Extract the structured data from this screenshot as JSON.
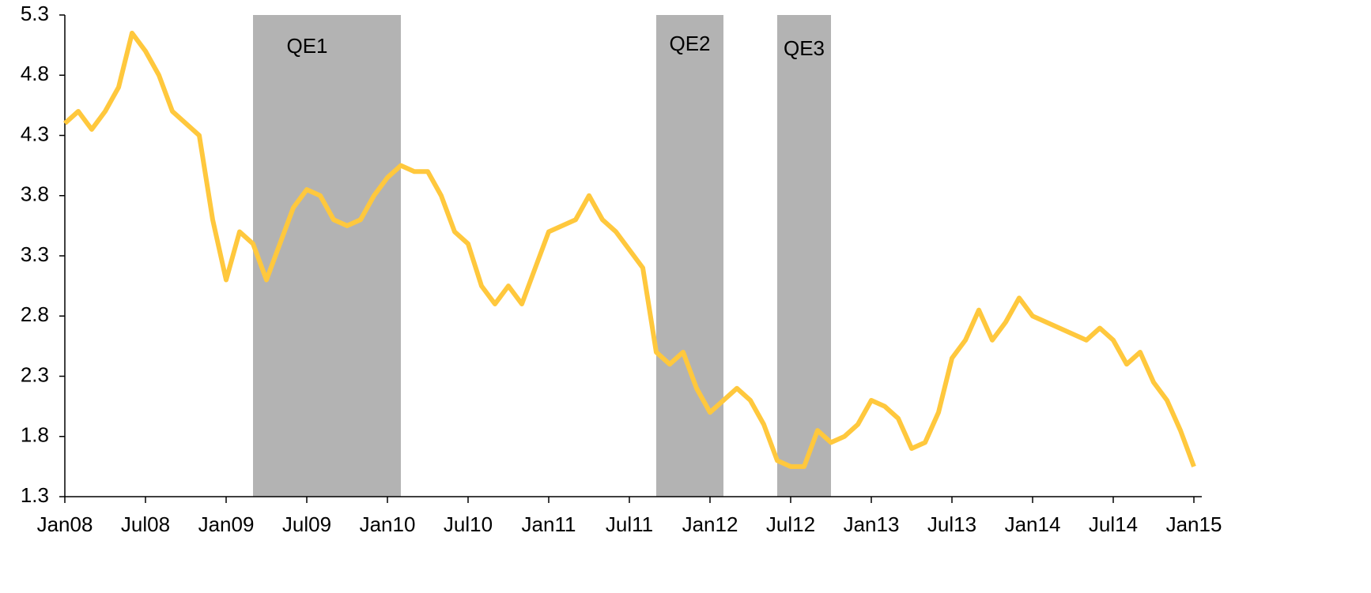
{
  "chart_data": {
    "type": "line",
    "x": [
      "2008-01",
      "2008-02",
      "2008-03",
      "2008-04",
      "2008-05",
      "2008-06",
      "2008-07",
      "2008-08",
      "2008-09",
      "2008-10",
      "2008-11",
      "2008-12",
      "2009-01",
      "2009-02",
      "2009-03",
      "2009-04",
      "2009-05",
      "2009-06",
      "2009-07",
      "2009-08",
      "2009-09",
      "2009-10",
      "2009-11",
      "2009-12",
      "2010-01",
      "2010-02",
      "2010-03",
      "2010-04",
      "2010-05",
      "2010-06",
      "2010-07",
      "2010-08",
      "2010-09",
      "2010-10",
      "2010-11",
      "2010-12",
      "2011-01",
      "2011-02",
      "2011-03",
      "2011-04",
      "2011-05",
      "2011-06",
      "2011-07",
      "2011-08",
      "2011-09",
      "2011-10",
      "2011-11",
      "2011-12",
      "2012-01",
      "2012-02",
      "2012-03",
      "2012-04",
      "2012-05",
      "2012-06",
      "2012-07",
      "2012-08",
      "2012-09",
      "2012-10",
      "2012-11",
      "2012-12",
      "2013-01",
      "2013-02",
      "2013-03",
      "2013-04",
      "2013-05",
      "2013-06",
      "2013-07",
      "2013-08",
      "2013-09",
      "2013-10",
      "2013-11",
      "2013-12",
      "2014-01",
      "2014-02",
      "2014-03",
      "2014-04",
      "2014-05",
      "2014-06",
      "2014-07",
      "2014-08",
      "2014-09",
      "2014-10",
      "2014-11",
      "2014-12",
      "2015-01"
    ],
    "series": [
      {
        "color": "#ffc83d",
        "values": [
          4.4,
          4.5,
          4.35,
          4.5,
          4.7,
          5.15,
          5.0,
          4.8,
          4.5,
          4.4,
          4.3,
          3.6,
          3.1,
          3.5,
          3.4,
          3.1,
          3.4,
          3.7,
          3.85,
          3.8,
          3.6,
          3.55,
          3.6,
          3.8,
          3.95,
          4.05,
          4.0,
          4.0,
          3.8,
          3.5,
          3.4,
          3.05,
          2.9,
          3.05,
          2.9,
          3.2,
          3.5,
          3.55,
          3.6,
          3.8,
          3.6,
          3.5,
          3.35,
          3.2,
          2.5,
          2.4,
          2.5,
          2.2,
          2.0,
          2.1,
          2.2,
          2.1,
          1.9,
          1.6,
          1.55,
          1.55,
          1.85,
          1.75,
          1.8,
          1.9,
          2.1,
          2.05,
          1.95,
          1.7,
          1.75,
          2.0,
          2.45,
          2.6,
          2.85,
          2.6,
          2.75,
          2.95,
          2.8,
          2.75,
          2.7,
          2.65,
          2.6,
          2.7,
          2.6,
          2.4,
          2.5,
          2.25,
          2.1,
          1.85,
          1.55
        ]
      }
    ],
    "xlim": [
      "2008-01",
      "2015-01"
    ],
    "xticks": [
      {
        "value": "2008-01",
        "label": "Jan08"
      },
      {
        "value": "2008-07",
        "label": "Jul08"
      },
      {
        "value": "2009-01",
        "label": "Jan09"
      },
      {
        "value": "2009-07",
        "label": "Jul09"
      },
      {
        "value": "2010-01",
        "label": "Jan10"
      },
      {
        "value": "2010-07",
        "label": "Jul10"
      },
      {
        "value": "2011-01",
        "label": "Jan11"
      },
      {
        "value": "2011-07",
        "label": "Jul11"
      },
      {
        "value": "2012-01",
        "label": "Jan12"
      },
      {
        "value": "2012-07",
        "label": "Jul12"
      },
      {
        "value": "2013-01",
        "label": "Jan13"
      },
      {
        "value": "2013-07",
        "label": "Jul13"
      },
      {
        "value": "2014-01",
        "label": "Jan14"
      },
      {
        "value": "2014-07",
        "label": "Jul14"
      },
      {
        "value": "2015-01",
        "label": "Jan15"
      }
    ],
    "ylim": [
      1.3,
      5.3
    ],
    "yticks": [
      1.3,
      1.8,
      2.3,
      2.8,
      3.3,
      3.8,
      4.3,
      4.8,
      5.3
    ],
    "annotations": [
      {
        "label": "QE1",
        "start": "2009-03",
        "end": "2010-02",
        "color": "#b3b3b3"
      },
      {
        "label": "QE2",
        "start": "2011-09",
        "end": "2012-02",
        "color": "#b3b3b3"
      },
      {
        "label": "QE3",
        "start": "2012-06",
        "end": "2012-10",
        "color": "#b3b3b3"
      }
    ]
  }
}
